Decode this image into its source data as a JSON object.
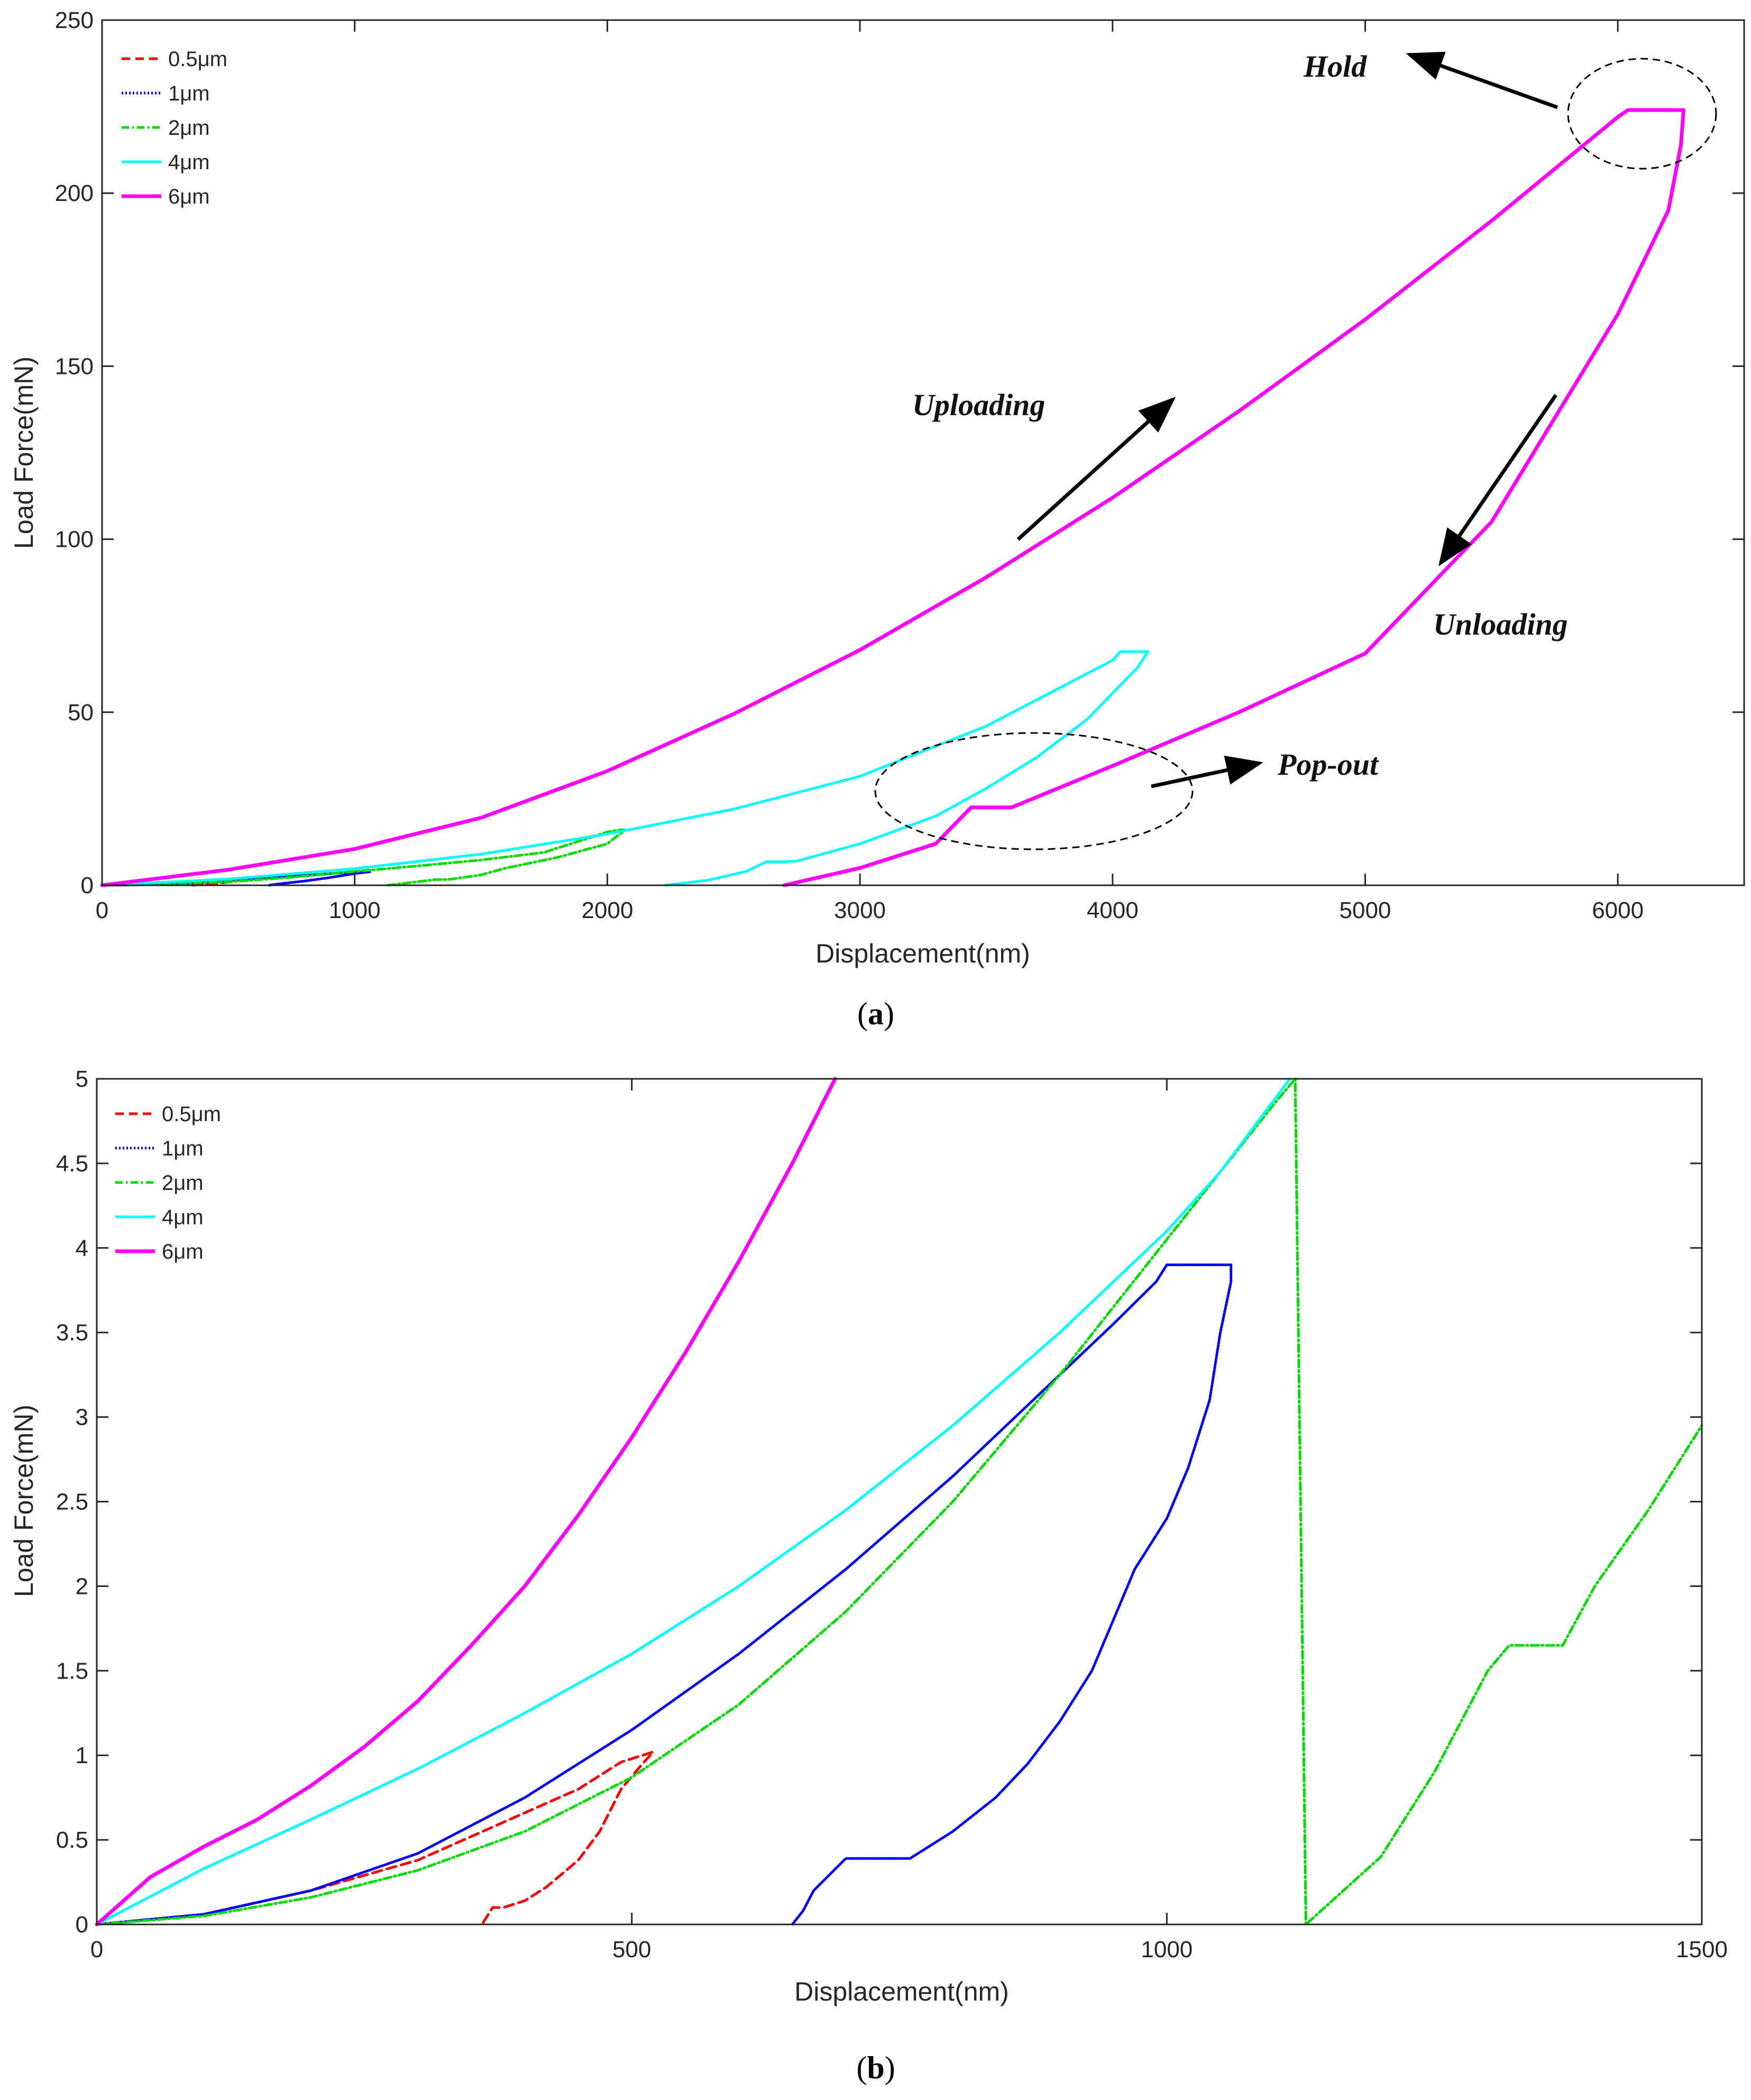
{
  "chart_data": [
    {
      "type": "line",
      "panel": "a",
      "caption_letter": "a",
      "xlabel": "Displacement(nm)",
      "ylabel": "Load Force(mN)",
      "xlim": [
        0,
        6500
      ],
      "ylim": [
        0,
        250
      ],
      "xticks": [
        0,
        1000,
        2000,
        3000,
        4000,
        5000,
        6000
      ],
      "yticks": [
        0,
        50,
        100,
        150,
        200,
        250
      ],
      "legend_position": "top-left",
      "series": [
        {
          "name": "0.5μm",
          "color": "#ff0000",
          "style": "dashed",
          "x": [
            0,
            100,
            200,
            300,
            400,
            500,
            520,
            500,
            450,
            400,
            370,
            360
          ],
          "y": [
            0,
            0.08,
            0.2,
            0.38,
            0.6,
            0.95,
            1.02,
            0.95,
            0.5,
            0.25,
            0.1,
            0
          ]
        },
        {
          "name": "1μm",
          "color": "#0000ff",
          "style": "dotted",
          "x": [
            0,
            200,
            400,
            600,
            800,
            1000,
            1060,
            1000,
            900,
            800,
            700,
            660
          ],
          "y": [
            0,
            0.2,
            0.8,
            1.9,
            2.8,
            3.9,
            3.9,
            3.4,
            2.2,
            1.2,
            0.4,
            0
          ]
        },
        {
          "name": "2μm",
          "color": "#00dd00",
          "style": "dashdot",
          "x": [
            0,
            250,
            500,
            750,
            1000,
            1250,
            1500,
            1750,
            2000,
            2050,
            2070,
            2000,
            1800,
            1600,
            1500,
            1370,
            1320,
            1200,
            1130
          ],
          "y": [
            0,
            0.4,
            1.0,
            2.3,
            4.0,
            5.6,
            7.3,
            9.5,
            15.4,
            16.0,
            16.0,
            12.0,
            8.0,
            5.0,
            3.0,
            1.65,
            1.65,
            0.6,
            0
          ]
        },
        {
          "name": "4μm",
          "color": "#00ffff",
          "style": "solid",
          "x": [
            0,
            500,
            1000,
            1500,
            2000,
            2500,
            3000,
            3500,
            4000,
            4030,
            4140,
            4100,
            3900,
            3700,
            3500,
            3300,
            3000,
            2750,
            2700,
            2630,
            2550,
            2400,
            2230
          ],
          "y": [
            0,
            1.8,
            4.8,
            9.0,
            14.8,
            22.0,
            31.5,
            46.0,
            65.0,
            67.5,
            67.5,
            63.0,
            48.0,
            37.0,
            28.0,
            20.0,
            12.0,
            7.0,
            6.8,
            6.8,
            4.0,
            1.5,
            0
          ]
        },
        {
          "name": "6μm",
          "color": "#ff00ff",
          "style": "solid",
          "x": [
            0,
            500,
            1000,
            1500,
            2000,
            2500,
            3000,
            3500,
            4000,
            4500,
            5000,
            5500,
            6000,
            6040,
            6260,
            6250,
            6200,
            6000,
            5500,
            5000,
            4500,
            4000,
            3600,
            3440,
            3300,
            3000,
            2700
          ],
          "y": [
            0,
            4.5,
            10.5,
            19.5,
            33.0,
            49.5,
            68.0,
            89.0,
            112.0,
            137.0,
            163.5,
            192.0,
            222.0,
            224.0,
            224.0,
            214.0,
            195.0,
            165.0,
            105.0,
            67.0,
            50.0,
            34.5,
            22.5,
            22.5,
            12.0,
            5.0,
            0
          ]
        }
      ],
      "annotations": [
        {
          "label": "Hold",
          "type": "ellipse+arrow"
        },
        {
          "label": "Uploading",
          "type": "arrow"
        },
        {
          "label": "Unloading",
          "type": "arrow"
        },
        {
          "label": "Pop-out",
          "type": "ellipse+arrow"
        }
      ]
    },
    {
      "type": "line",
      "panel": "b",
      "caption_letter": "b",
      "xlabel": "Displacement(nm)",
      "ylabel": "Load Force(mN)",
      "xlim": [
        0,
        1500
      ],
      "ylim": [
        0,
        5
      ],
      "xticks": [
        0,
        500,
        1000,
        1500
      ],
      "yticks": [
        0,
        0.5,
        1,
        1.5,
        2,
        2.5,
        3,
        3.5,
        4,
        4.5,
        5
      ],
      "legend_position": "top-left",
      "series": [
        {
          "name": "0.5μm",
          "color": "#ff0000",
          "style": "dashed",
          "x": [
            0,
            100,
            200,
            300,
            350,
            400,
            450,
            490,
            520,
            510,
            490,
            470,
            450,
            420,
            400,
            380,
            370,
            360
          ],
          "y": [
            0,
            0.06,
            0.2,
            0.38,
            0.52,
            0.66,
            0.8,
            0.96,
            1.02,
            0.95,
            0.8,
            0.55,
            0.38,
            0.22,
            0.14,
            0.1,
            0.1,
            0
          ]
        },
        {
          "name": "1μm",
          "color": "#0000ff",
          "style": "dotted",
          "x": [
            0,
            100,
            200,
            300,
            400,
            500,
            600,
            700,
            800,
            900,
            950,
            990,
            1000,
            1060,
            1060,
            1050,
            1040,
            1020,
            1000,
            970,
            950,
            930,
            900,
            870,
            840,
            800,
            760,
            700,
            670,
            660,
            650
          ],
          "y": [
            0,
            0.06,
            0.2,
            0.42,
            0.75,
            1.15,
            1.6,
            2.1,
            2.65,
            3.25,
            3.55,
            3.8,
            3.9,
            3.9,
            3.8,
            3.5,
            3.1,
            2.7,
            2.4,
            2.1,
            1.8,
            1.5,
            1.2,
            0.95,
            0.75,
            0.55,
            0.39,
            0.39,
            0.2,
            0.08,
            0
          ]
        },
        {
          "name": "2μm",
          "color": "#00dd00",
          "style": "dashdot",
          "x": [
            0,
            100,
            200,
            300,
            400,
            500,
            600,
            700,
            800,
            900,
            1000,
            1050,
            1100,
            1120,
            1130,
            1200,
            1250,
            1300,
            1320,
            1370,
            1400,
            1450,
            1500
          ],
          "y": [
            0,
            0.05,
            0.16,
            0.32,
            0.55,
            0.87,
            1.3,
            1.85,
            2.5,
            3.25,
            4.05,
            4.45,
            4.85,
            5.0,
            0,
            0.4,
            0.9,
            1.5,
            1.65,
            1.65,
            2.0,
            2.45,
            2.95
          ]
        },
        {
          "name": "4μm",
          "color": "#00ffff",
          "style": "solid",
          "x": [
            0,
            100,
            200,
            300,
            400,
            500,
            600,
            700,
            800,
            900,
            1000,
            1050,
            1115
          ],
          "y": [
            0,
            0.33,
            0.62,
            0.92,
            1.25,
            1.6,
            2.0,
            2.45,
            2.95,
            3.5,
            4.1,
            4.45,
            5.0
          ]
        },
        {
          "name": "6μm",
          "color": "#ff00ff",
          "style": "solid",
          "x": [
            0,
            50,
            100,
            150,
            200,
            250,
            300,
            350,
            400,
            450,
            500,
            550,
            600,
            650,
            690
          ],
          "y": [
            0,
            0.28,
            0.46,
            0.62,
            0.82,
            1.05,
            1.32,
            1.65,
            2.0,
            2.42,
            2.88,
            3.38,
            3.92,
            4.5,
            5.0
          ]
        }
      ]
    }
  ]
}
